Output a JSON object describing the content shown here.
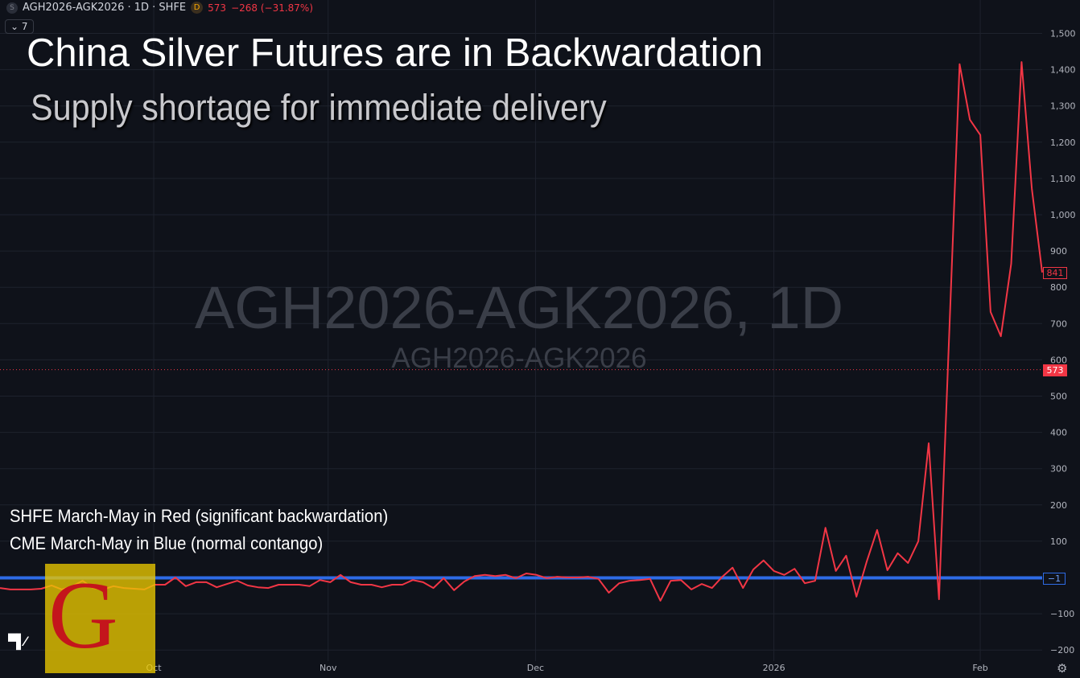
{
  "header": {
    "symbol_icon": "S",
    "symbol": "AGH2026-AGK2026 · 1D · SHFE",
    "data_icon": "D",
    "last": "573",
    "change": "−268 (−31.87%)",
    "collapse_label": "7"
  },
  "annotations": {
    "title": "China Silver Futures are in Backwardation",
    "subtitle": "Supply shortage for immediate delivery",
    "note_red": "SHFE March-May in Red (significant backwardation)",
    "note_blue": "CME March-May in Blue (normal contango)"
  },
  "watermark": {
    "main": "AGH2026-AGK2026, 1D",
    "sub": "AGH2026-AGK2026"
  },
  "logo": {
    "letter": "G",
    "tv": "TV"
  },
  "price_labels": {
    "red_last": "841",
    "red_close": "573",
    "blue_last": "−1"
  },
  "colors": {
    "background": "#0f121a",
    "grid": "#1e222d",
    "red": "#f23645",
    "blue": "#2e6be6",
    "axis_text": "#b2b5be"
  },
  "chart_data": {
    "type": "line",
    "grid": true,
    "ylim": [
      -200,
      1500
    ],
    "y_ticks": [
      -200,
      -100,
      100,
      200,
      300,
      400,
      500,
      600,
      700,
      800,
      900,
      1000,
      1100,
      1200,
      1300,
      1400,
      1500
    ],
    "x_ticks": [
      {
        "label": "Oct",
        "index": 14.9
      },
      {
        "label": "Nov",
        "index": 31.8
      },
      {
        "label": "Dec",
        "index": 51.9
      },
      {
        "label": "2026",
        "index": 75
      },
      {
        "label": "Feb",
        "index": 95
      }
    ],
    "series": [
      {
        "color": "#f23645",
        "values": [
          -29,
          -33,
          -33,
          -33,
          -31,
          -22,
          -33,
          -24,
          -9,
          -29,
          -33,
          -24,
          -29,
          -31,
          -33,
          -20,
          -20,
          0,
          -24,
          -13,
          -13,
          -27,
          -18,
          -9,
          -22,
          -27,
          -29,
          -20,
          -20,
          -20,
          -24,
          -7,
          -13,
          7,
          -13,
          -20,
          -20,
          -27,
          -20,
          -20,
          -7,
          -13,
          -29,
          -2,
          -35,
          -11,
          4,
          7,
          4,
          7,
          -2,
          11,
          7,
          -2,
          2,
          0,
          0,
          2,
          -4,
          -42,
          -16,
          -9,
          -7,
          -4,
          -64,
          -9,
          -7,
          -33,
          -18,
          -29,
          2,
          27,
          -29,
          22,
          47,
          18,
          7,
          24,
          -16,
          -9,
          137,
          18,
          60,
          -53,
          44,
          131,
          20,
          67,
          40,
          100,
          370,
          -60,
          678,
          1415,
          1262,
          1220,
          732,
          665,
          865,
          1421,
          1071,
          841
        ]
      },
      {
        "color": "#2e6be6",
        "constant": -1
      }
    ]
  }
}
